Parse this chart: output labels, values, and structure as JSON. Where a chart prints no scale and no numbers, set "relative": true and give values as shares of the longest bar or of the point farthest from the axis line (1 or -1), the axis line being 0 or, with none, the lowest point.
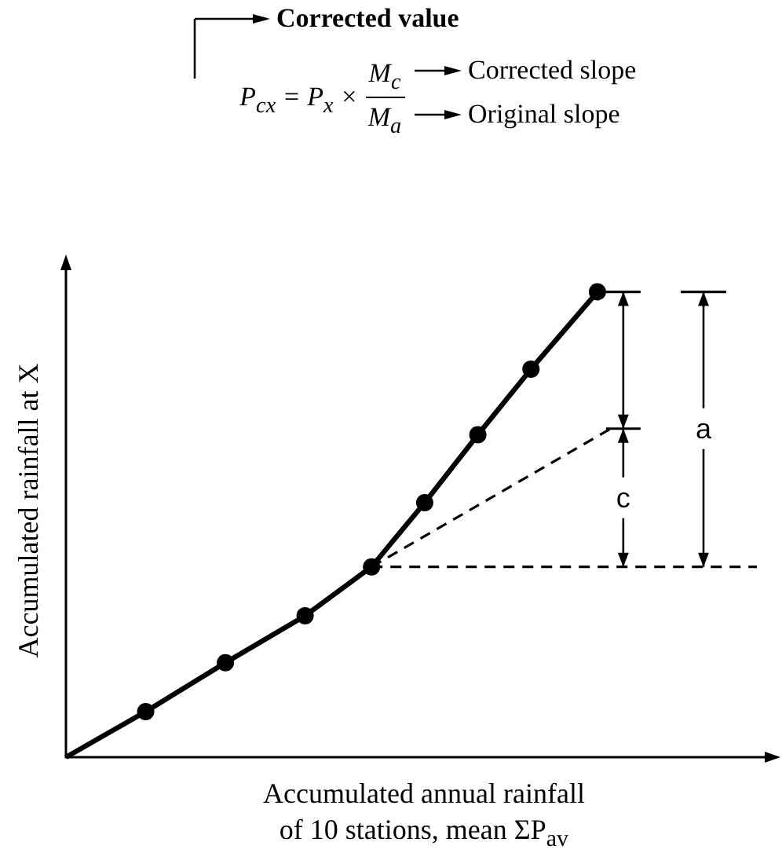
{
  "chart_data": {
    "type": "line",
    "relative": true,
    "xlabel": "Accumulated annual rainfall\nof 10 stations, mean ΣP$_{av}$",
    "ylabel": "Accumulated rainfall at X",
    "categories": [
      null,
      null,
      null,
      null,
      null,
      null,
      null,
      null,
      null,
      null,
      null,
      null,
      null,
      null,
      null,
      null,
      null,
      null,
      null,
      null,
      null,
      null,
      null,
      null,
      null,
      null,
      null,
      null,
      null,
      null,
      null,
      null,
      null,
      null,
      null,
      null,
      null,
      null,
      null,
      null,
      null,
      null,
      null,
      null,
      null,
      null,
      null,
      null,
      null,
      null,
      null,
      null,
      null
    ],
    "series": [
      {
        "color": "#000000",
        "marker": "circle",
        "line_style": "solid",
        "values": [
          0,
          null,
          null,
          null,
          null,
          null,
          0.098,
          null,
          null,
          null,
          null,
          null,
          0.203,
          null,
          null,
          null,
          null,
          null,
          0.304,
          null,
          null,
          null,
          null,
          0.409,
          null,
          null,
          null,
          0.547,
          null,
          null,
          null,
          0.693,
          null,
          null,
          null,
          0.834,
          null,
          null,
          null,
          null,
          1,
          null,
          null,
          null,
          null,
          null,
          null,
          null,
          null,
          null,
          null,
          null,
          null
        ]
      },
      {
        "color": "#000000",
        "marker": "none",
        "line_style": "dashed",
        "values": [
          null,
          null,
          null,
          null,
          null,
          null,
          null,
          null,
          null,
          null,
          null,
          null,
          null,
          null,
          null,
          null,
          null,
          null,
          null,
          null,
          null,
          null,
          null,
          0.409,
          null,
          null,
          null,
          null,
          null,
          null,
          null,
          null,
          null,
          null,
          null,
          null,
          null,
          null,
          null,
          null,
          null,
          0.706,
          null,
          null,
          null,
          null,
          null,
          null,
          null,
          null,
          null,
          null,
          null
        ]
      },
      {
        "color": "#000000",
        "marker": "none",
        "line_style": "dashed",
        "values": [
          null,
          null,
          null,
          null,
          null,
          null,
          null,
          null,
          null,
          null,
          null,
          null,
          null,
          null,
          null,
          null,
          null,
          null,
          null,
          null,
          null,
          null,
          null,
          0.409,
          null,
          null,
          null,
          null,
          null,
          null,
          null,
          null,
          null,
          null,
          null,
          null,
          null,
          null,
          null,
          null,
          null,
          null,
          null,
          null,
          null,
          null,
          null,
          null,
          null,
          null,
          null,
          null,
          0.409
        ]
      }
    ],
    "annotations": [
      "Corrected value",
      "P$_{cx}$ = P$_{x}$ ×",
      "M$_{c}$",
      "M$_{a}$",
      "Corrected slope",
      "Original slope",
      "c",
      "a"
    ]
  }
}
